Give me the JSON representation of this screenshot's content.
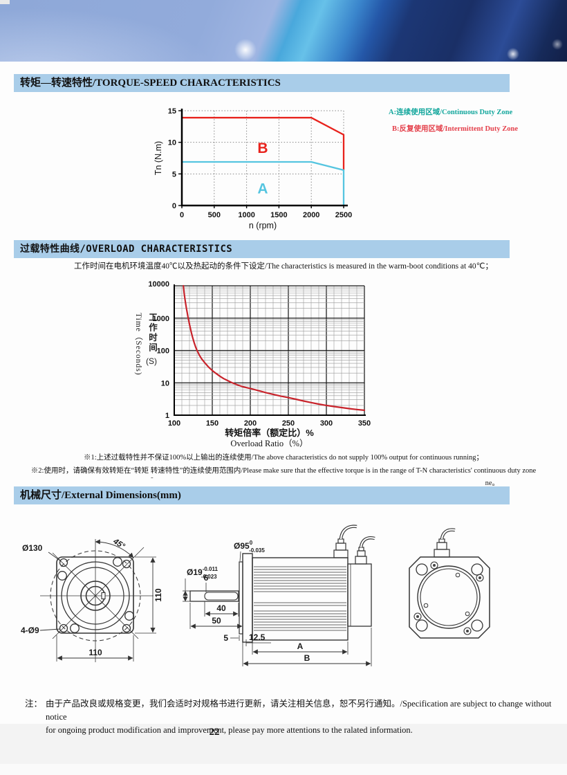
{
  "page": {
    "number": "22"
  },
  "sections": {
    "torque_speed": {
      "title": "转矩—转速特性/TORQUE-SPEED CHARACTERISTICS"
    },
    "overload": {
      "title": "过载特性曲线/OVERLOAD CHARACTERISTICS",
      "subtitle": "工作时间在电机环境温度40℃以及热起动的条件下设定/The characteristics is measured in the warm-boot conditions at 40℃；",
      "note1": "※1:上述过载特性并不保证100%以上输出的连续使用/The above characteristics do not supply 100% output for continuous running；",
      "note2": "※2:使用时，请确保有效转矩在“转矩 转速特性”的连续使用范围内/Please make sure that the effective torque is in the range of T-N characteristics' continuous duty zone",
      "note2_tail": "ne。",
      "note_dash": "-"
    },
    "dimensions": {
      "title": "机械尺寸/External Dimensions(mm)"
    }
  },
  "footer": {
    "note_label": "注：",
    "note_line1": "由于产品改良或规格变更，我们会适时对规格书进行更新，请关注相关信息，恕不另行通知。/Specification are subject to change without notice",
    "note_line2": "for ongoing product modification and improvement, please pay more attentions to the ralated information."
  },
  "chart_data": [
    {
      "type": "line",
      "title": "Torque-Speed Characteristics",
      "xlabel": "n (rpm)",
      "ylabel": "Tn (N.m)",
      "xlim": [
        0,
        2500
      ],
      "ylim": [
        0,
        15
      ],
      "xticks": [
        0,
        500,
        1000,
        1500,
        2000,
        2500
      ],
      "yticks": [
        0,
        5,
        10,
        15
      ],
      "grid": "dotted",
      "series": [
        {
          "name": "Intermittent duty zone boundary",
          "color": "#e8221c",
          "points": [
            [
              0,
              13.9
            ],
            [
              2000,
              13.9
            ],
            [
              2500,
              11.2
            ],
            [
              2500,
              5.6
            ]
          ]
        },
        {
          "name": "Continuous duty zone boundary",
          "color": "#55c5e0",
          "points": [
            [
              0,
              6.9
            ],
            [
              2000,
              6.9
            ],
            [
              2500,
              5.6
            ],
            [
              2500,
              0
            ]
          ]
        }
      ],
      "zone_labels": [
        {
          "text": "B",
          "x": 1250,
          "y": 8.3,
          "color": "#e8221c"
        },
        {
          "text": "A",
          "x": 1250,
          "y": 1.9,
          "color": "#55c5e0"
        }
      ],
      "legend": [
        {
          "text": "A:连续使用区域/Continuous Duty Zone",
          "color": "#14a79d"
        },
        {
          "text": "B:反复使用区域/Intermittent Duty Zone",
          "color": "#e4404b"
        }
      ],
      "legend_position": "right"
    },
    {
      "type": "line",
      "title": "Overload Characteristics",
      "xlabel_cn": "转矩倍率（额定比）%",
      "xlabel_en": "Overload Ratio（%）",
      "ylabel_cn": "工作时间",
      "ylabel_unit": "(S)",
      "ylabel_en": "Time（Seconds)",
      "xlim": [
        100,
        350
      ],
      "ylim": [
        1,
        10000
      ],
      "yscale": "log",
      "xticks": [
        100,
        150,
        200,
        250,
        300,
        350
      ],
      "x_minor_step": 10,
      "yticks": [
        1,
        10,
        100,
        1000,
        10000
      ],
      "grid": "solid",
      "series": [
        {
          "name": "Overload time limit",
          "color": "#c8232b",
          "points": [
            [
              112,
              10000
            ],
            [
              113,
              6000
            ],
            [
              114,
              4000
            ],
            [
              115,
              2800
            ],
            [
              116,
              2000
            ],
            [
              117,
              1500
            ],
            [
              118,
              1100
            ],
            [
              119,
              850
            ],
            [
              120,
              650
            ],
            [
              122,
              400
            ],
            [
              124,
              260
            ],
            [
              126,
              180
            ],
            [
              128,
              130
            ],
            [
              130,
              100
            ],
            [
              133,
              72
            ],
            [
              136,
              55
            ],
            [
              140,
              42
            ],
            [
              145,
              31
            ],
            [
              150,
              24
            ],
            [
              155,
              19.5
            ],
            [
              160,
              16
            ],
            [
              165,
              13.5
            ],
            [
              170,
              11.8
            ],
            [
              175,
              10.3
            ],
            [
              180,
              9.2
            ],
            [
              185,
              8.3
            ],
            [
              190,
              7.6
            ],
            [
              195,
              7.1
            ],
            [
              200,
              6.7
            ],
            [
              210,
              5.8
            ],
            [
              220,
              5.0
            ],
            [
              230,
              4.4
            ],
            [
              240,
              3.9
            ],
            [
              250,
              3.5
            ],
            [
              260,
              3.1
            ],
            [
              270,
              2.75
            ],
            [
              280,
              2.45
            ],
            [
              290,
              2.2
            ],
            [
              300,
              2.0
            ],
            [
              310,
              1.85
            ],
            [
              320,
              1.72
            ],
            [
              330,
              1.6
            ],
            [
              340,
              1.5
            ],
            [
              350,
              1.42
            ]
          ]
        }
      ]
    }
  ],
  "drawing": {
    "front": {
      "bolt_circle": "Ø130",
      "mount_holes": "4-Ø9",
      "angle": "45°",
      "height": "110",
      "width": "110"
    },
    "side": {
      "spigot_d": "Ø95",
      "spigot_tol_upper": "0",
      "spigot_tol_lower": "-0.035",
      "shaft_d": "Ø19",
      "shaft_tol_upper": "-0.011",
      "shaft_tol_lower": "-0.023",
      "key_width": "6",
      "key_length": "40",
      "shaft_length": "50",
      "spigot_depth": "5",
      "front_offset": "12.5",
      "body_length": "A",
      "total_length": "B"
    }
  }
}
